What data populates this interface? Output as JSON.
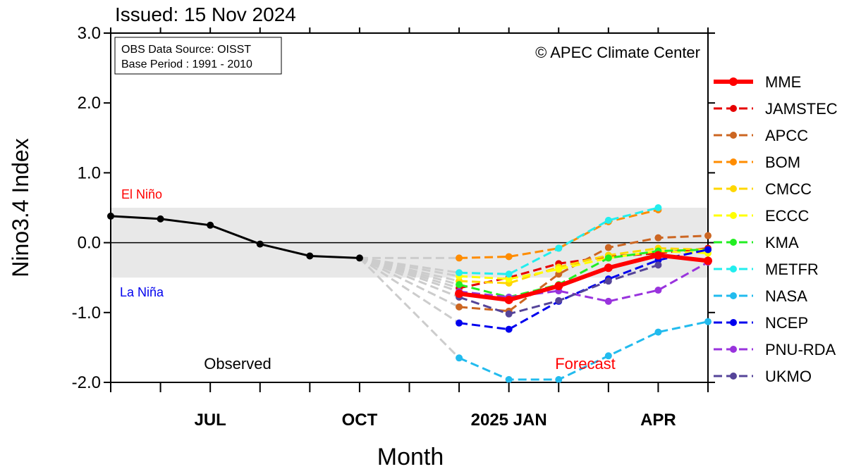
{
  "chart_data": {
    "type": "line",
    "title": "Issued: 15 Nov 2024",
    "xlabel": "Month",
    "ylabel": "Nino3.4 Index",
    "ylim": [
      -2.0,
      3.0
    ],
    "yticks": [
      "3.0",
      "2.0",
      "1.0",
      "0.0",
      "-1.0",
      "-2.0"
    ],
    "x_months": [
      "2024-05",
      "2024-06",
      "2024-07",
      "2024-08",
      "2024-09",
      "2024-10",
      "2024-11",
      "2024-12",
      "2025-01",
      "2025-02",
      "2025-03",
      "2025-04",
      "2025-05"
    ],
    "x_tick_labels": [
      {
        "month": "2024-07",
        "label": "JUL"
      },
      {
        "month": "2024-10",
        "label": "OCT"
      },
      {
        "month": "2025-01",
        "label": "2025 JAN"
      },
      {
        "month": "2025-04",
        "label": "APR"
      }
    ],
    "neutral_band": [
      -0.5,
      0.5
    ],
    "grid": false,
    "legend_position": "right",
    "annotations": {
      "el_nino": "El Niño",
      "la_nina": "La Niña",
      "observed": "Observed",
      "forecast": "Forecast",
      "copyright": "© APEC Climate Center",
      "source_line1": "OBS Data Source: OISST",
      "source_line2": "Base Period : 1991 - 2010"
    },
    "observed": {
      "x": [
        "2024-05",
        "2024-06",
        "2024-07",
        "2024-08",
        "2024-09",
        "2024-10"
      ],
      "values": [
        0.38,
        0.34,
        0.25,
        -0.02,
        -0.19,
        -0.22
      ],
      "color": "#000000"
    },
    "forecast_start": {
      "month": "2024-10",
      "value": -0.22
    },
    "forecast_x": [
      "2024-12",
      "2025-01",
      "2025-02",
      "2025-03",
      "2025-04",
      "2025-05"
    ],
    "series": [
      {
        "name": "MME",
        "color": "#ff0000",
        "style": "solid",
        "values": [
          -0.73,
          -0.82,
          -0.62,
          -0.36,
          -0.18,
          -0.26
        ]
      },
      {
        "name": "JAMSTEC",
        "color": "#e60000",
        "style": "dashed",
        "values": [
          -0.65,
          -0.5,
          -0.3,
          -0.2,
          -0.15,
          -0.08
        ]
      },
      {
        "name": "APCC",
        "color": "#cc6622",
        "style": "dashed",
        "values": [
          -0.92,
          -0.98,
          -0.45,
          -0.07,
          0.07,
          0.1
        ]
      },
      {
        "name": "BOM",
        "color": "#ff8c00",
        "style": "dashed",
        "values": [
          -0.22,
          -0.2,
          -0.08,
          0.3,
          0.47,
          null
        ]
      },
      {
        "name": "CMCC",
        "color": "#ffd700",
        "style": "dashed",
        "values": [
          -0.55,
          -0.58,
          -0.35,
          -0.18,
          -0.08,
          -0.1
        ]
      },
      {
        "name": "ECCC",
        "color": "#ffff00",
        "style": "dashed",
        "values": [
          -0.48,
          -0.52,
          -0.38,
          -0.22,
          -0.12,
          -0.15
        ]
      },
      {
        "name": "KMA",
        "color": "#22ee22",
        "style": "dashed",
        "values": [
          -0.6,
          -0.78,
          -0.6,
          -0.22,
          -0.12,
          -0.1
        ]
      },
      {
        "name": "METFR",
        "color": "#22eeee",
        "style": "dashed",
        "values": [
          -0.43,
          -0.45,
          -0.08,
          0.32,
          0.5,
          null
        ]
      },
      {
        "name": "NASA",
        "color": "#22bbee",
        "style": "dashed",
        "values": [
          -1.65,
          -1.96,
          -1.96,
          -1.62,
          -1.28,
          -1.13
        ]
      },
      {
        "name": "NCEP",
        "color": "#0000ee",
        "style": "dashed",
        "values": [
          -1.15,
          -1.24,
          -0.84,
          -0.52,
          -0.25,
          -0.1
        ]
      },
      {
        "name": "PNU-RDA",
        "color": "#9933dd",
        "style": "dashed",
        "values": [
          -0.7,
          -0.78,
          -0.69,
          -0.84,
          -0.68,
          -0.28
        ]
      },
      {
        "name": "UKMO",
        "color": "#554499",
        "style": "dashed",
        "values": [
          -0.78,
          -1.02,
          -0.83,
          -0.55,
          -0.32,
          null
        ]
      }
    ]
  }
}
